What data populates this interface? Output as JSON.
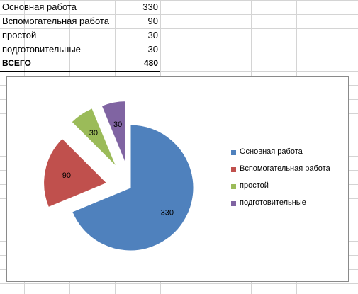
{
  "table": {
    "rows": [
      {
        "label": "Основная работа",
        "value": "330"
      },
      {
        "label": "Вспомогательная работа",
        "value": "90"
      },
      {
        "label": "простой",
        "value": "30"
      },
      {
        "label": "подготовительные",
        "value": "30"
      }
    ],
    "total": {
      "label": "ВСЕГО",
      "value": "480"
    }
  },
  "chart_data": {
    "type": "pie",
    "exploded": true,
    "categories": [
      "Основная работа",
      "Вспомогательная работа",
      "простой",
      "подготовительные"
    ],
    "values": [
      330,
      90,
      30,
      30
    ],
    "colors": [
      "#4f81bd",
      "#c0504d",
      "#9bbb59",
      "#8064a2"
    ],
    "data_labels": [
      "330",
      "90",
      "30",
      "30"
    ],
    "legend_position": "right"
  }
}
